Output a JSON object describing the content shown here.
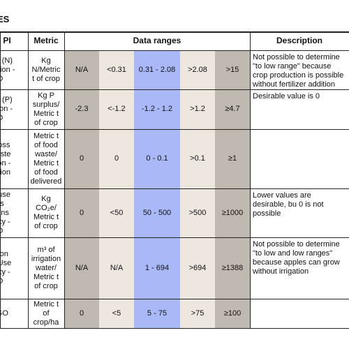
{
  "heading": "ES",
  "table": {
    "header": [
      "PI",
      "Metric",
      "Data ranges",
      "Description"
    ],
    "rows": [
      {
        "kpi": [
          "izer (N)",
          "rigation -",
          "O"
        ],
        "metric": "Kg N/Metric t of crop",
        "ranges": [
          "N/A",
          "<0.31",
          "0.31 - 2.08",
          ">2.08",
          ">15"
        ],
        "description": "Not possible to determine \"to low range\" because crop production is possible without fertilizer addition"
      },
      {
        "kpi": [
          "izer (P)",
          "zation -",
          "O"
        ],
        "metric": "Kg P surplus/ Metric t of crop",
        "ranges": [
          "-2.3",
          "<-1.2",
          "-1.2 - 1.2",
          ">1.2",
          "≥4.7"
        ],
        "description": "Desirable value is 0"
      },
      {
        "kpi": [
          "l Loss",
          "Waste",
          "ation -",
          "bution"
        ],
        "metric": "Metric t of food waste/ Metric t of food delivered",
        "ranges": [
          "0",
          "0",
          "0 - 0.1",
          ">0.1",
          "≥1"
        ]
      },
      {
        "kpi": [
          "house",
          "as",
          "sions",
          "nsity -",
          "O"
        ],
        "metric": "Kg CO₂e/ Metric t of crop",
        "ranges": [
          "0",
          "<50",
          "50 - 500",
          ">500",
          "≥1000"
        ],
        "description": "Lower values are desirable, bu 0 is not possible"
      },
      {
        "kpi": [
          "ation",
          "er Use",
          "nsity -",
          "O"
        ],
        "metric": "m³ of irrigation water/ Metric t of crop",
        "ranges": [
          "N/A",
          "N/A",
          "1 - 694",
          ">694",
          "≥1388"
        ],
        "description": "Not possible to determine \"to low and low ranges\" because apples can grow without irrigation"
      },
      {
        "kpi": [
          "- GO"
        ],
        "metric": "Metric t of crop/ha",
        "ranges": [
          "0",
          "<5",
          "5 - 75",
          ">75",
          "≥100"
        ]
      }
    ]
  }
}
